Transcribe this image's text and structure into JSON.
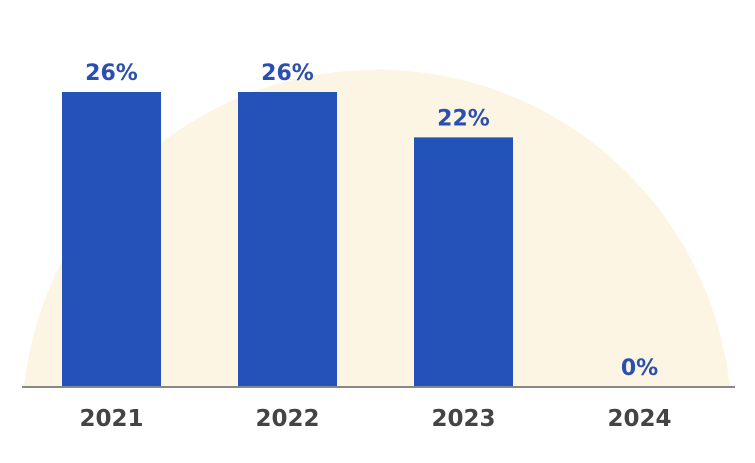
{
  "chart_data": {
    "type": "bar",
    "categories": [
      "2021",
      "2022",
      "2023",
      "2024"
    ],
    "values": [
      26,
      26,
      22,
      0
    ],
    "data_labels": [
      "26%",
      "26%",
      "22%",
      "0%"
    ],
    "title": "",
    "xlabel": "",
    "ylabel": "",
    "ylim": [
      0,
      26
    ],
    "grid": false,
    "colors": {
      "bar": "#2352b8",
      "data_label": "#2a4fae",
      "category_label": "#444444",
      "axis": "#888888",
      "background_shape": "#fdf5e4"
    }
  }
}
